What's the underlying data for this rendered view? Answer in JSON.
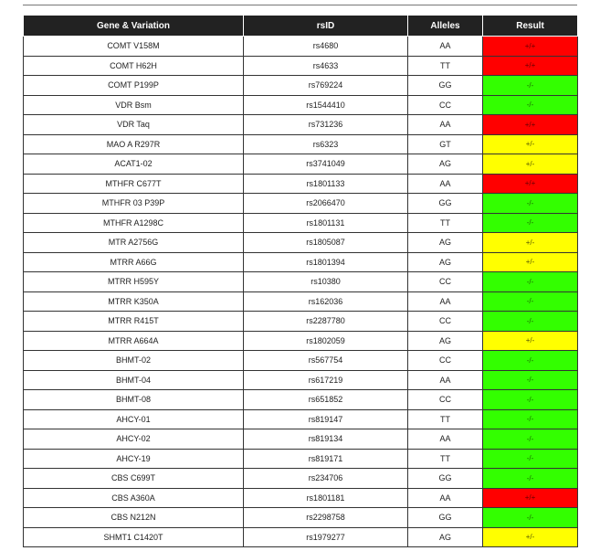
{
  "columns": {
    "gene": "Gene & Variation",
    "rsid": "rsID",
    "alleles": "Alleles",
    "result": "Result"
  },
  "colors": {
    "red": "#ff0000",
    "green": "#33ff00",
    "yellow": "#ffff00",
    "header": "#222222"
  },
  "rows": [
    {
      "gene": "COMT V158M",
      "rsid": "rs4680",
      "alleles": "AA",
      "result": "+/+",
      "status": "red"
    },
    {
      "gene": "COMT H62H",
      "rsid": "rs4633",
      "alleles": "TT",
      "result": "+/+",
      "status": "red"
    },
    {
      "gene": "COMT P199P",
      "rsid": "rs769224",
      "alleles": "GG",
      "result": "-/-",
      "status": "green"
    },
    {
      "gene": "VDR Bsm",
      "rsid": "rs1544410",
      "alleles": "CC",
      "result": "-/-",
      "status": "green"
    },
    {
      "gene": "VDR Taq",
      "rsid": "rs731236",
      "alleles": "AA",
      "result": "+/+",
      "status": "red"
    },
    {
      "gene": "MAO A R297R",
      "rsid": "rs6323",
      "alleles": "GT",
      "result": "+/-",
      "status": "yellow"
    },
    {
      "gene": "ACAT1-02",
      "rsid": "rs3741049",
      "alleles": "AG",
      "result": "+/-",
      "status": "yellow"
    },
    {
      "gene": "MTHFR C677T",
      "rsid": "rs1801133",
      "alleles": "AA",
      "result": "+/+",
      "status": "red"
    },
    {
      "gene": "MTHFR 03 P39P",
      "rsid": "rs2066470",
      "alleles": "GG",
      "result": "-/-",
      "status": "green"
    },
    {
      "gene": "MTHFR A1298C",
      "rsid": "rs1801131",
      "alleles": "TT",
      "result": "-/-",
      "status": "green"
    },
    {
      "gene": "MTR A2756G",
      "rsid": "rs1805087",
      "alleles": "AG",
      "result": "+/-",
      "status": "yellow"
    },
    {
      "gene": "MTRR A66G",
      "rsid": "rs1801394",
      "alleles": "AG",
      "result": "+/-",
      "status": "yellow"
    },
    {
      "gene": "MTRR H595Y",
      "rsid": "rs10380",
      "alleles": "CC",
      "result": "-/-",
      "status": "green"
    },
    {
      "gene": "MTRR K350A",
      "rsid": "rs162036",
      "alleles": "AA",
      "result": "-/-",
      "status": "green"
    },
    {
      "gene": "MTRR R415T",
      "rsid": "rs2287780",
      "alleles": "CC",
      "result": "-/-",
      "status": "green"
    },
    {
      "gene": "MTRR A664A",
      "rsid": "rs1802059",
      "alleles": "AG",
      "result": "+/-",
      "status": "yellow"
    },
    {
      "gene": "BHMT-02",
      "rsid": "rs567754",
      "alleles": "CC",
      "result": "-/-",
      "status": "green"
    },
    {
      "gene": "BHMT-04",
      "rsid": "rs617219",
      "alleles": "AA",
      "result": "-/-",
      "status": "green"
    },
    {
      "gene": "BHMT-08",
      "rsid": "rs651852",
      "alleles": "CC",
      "result": "-/-",
      "status": "green"
    },
    {
      "gene": "AHCY-01",
      "rsid": "rs819147",
      "alleles": "TT",
      "result": "-/-",
      "status": "green"
    },
    {
      "gene": "AHCY-02",
      "rsid": "rs819134",
      "alleles": "AA",
      "result": "-/-",
      "status": "green"
    },
    {
      "gene": "AHCY-19",
      "rsid": "rs819171",
      "alleles": "TT",
      "result": "-/-",
      "status": "green"
    },
    {
      "gene": "CBS C699T",
      "rsid": "rs234706",
      "alleles": "GG",
      "result": "-/-",
      "status": "green"
    },
    {
      "gene": "CBS A360A",
      "rsid": "rs1801181",
      "alleles": "AA",
      "result": "+/+",
      "status": "red"
    },
    {
      "gene": "CBS N212N",
      "rsid": "rs2298758",
      "alleles": "GG",
      "result": "-/-",
      "status": "green"
    },
    {
      "gene": "SHMT1 C1420T",
      "rsid": "rs1979277",
      "alleles": "AG",
      "result": "+/-",
      "status": "yellow"
    }
  ]
}
